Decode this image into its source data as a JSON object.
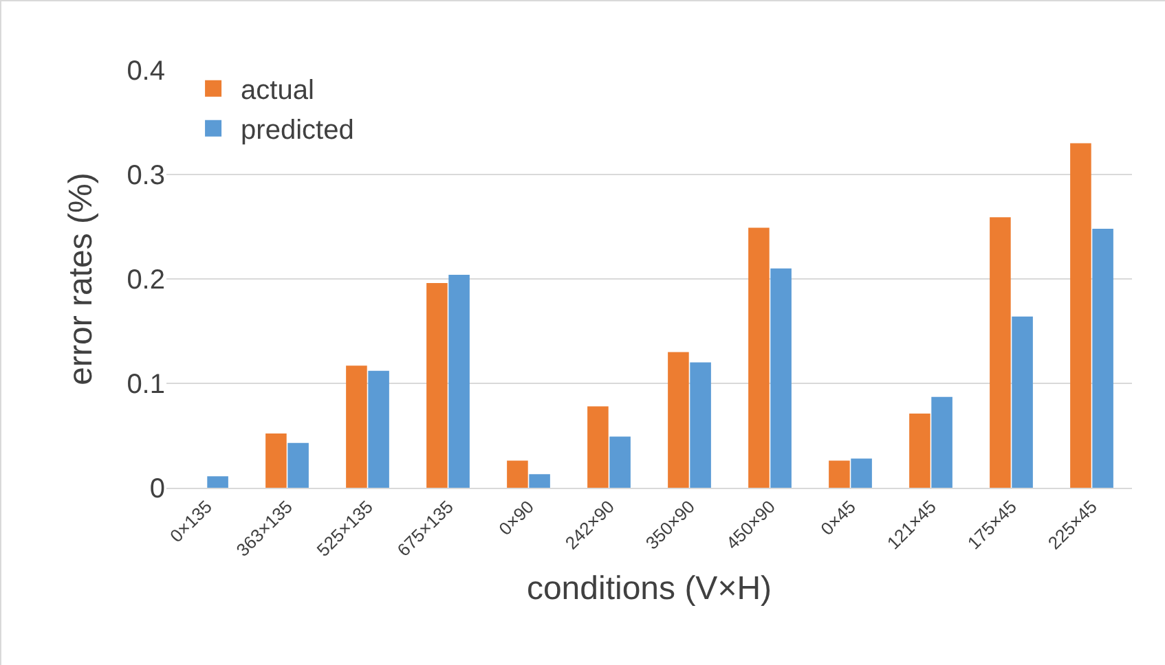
{
  "chart_data": {
    "type": "bar",
    "xlabel": "conditions (V×H)",
    "ylabel": "error rates (%)",
    "categories": [
      "0×135",
      "363×135",
      "525×135",
      "675×135",
      "0×90",
      "242×90",
      "350×90",
      "450×90",
      "0×45",
      "121×45",
      "175×45",
      "225×45"
    ],
    "series": [
      {
        "name": "actual",
        "color": "#ed7d31",
        "values": [
          0,
          0.052,
          0.117,
          0.196,
          0.026,
          0.078,
          0.13,
          0.249,
          0.026,
          0.071,
          0.259,
          0.33
        ]
      },
      {
        "name": "predicted",
        "color": "#5b9bd5",
        "values": [
          0.011,
          0.043,
          0.112,
          0.204,
          0.013,
          0.049,
          0.12,
          0.21,
          0.028,
          0.087,
          0.164,
          0.248
        ]
      }
    ],
    "ylim": [
      0,
      0.4
    ],
    "yticks": [
      0,
      0.1,
      0.2,
      0.3,
      0.4
    ],
    "grid": "y",
    "legend": "top left"
  }
}
